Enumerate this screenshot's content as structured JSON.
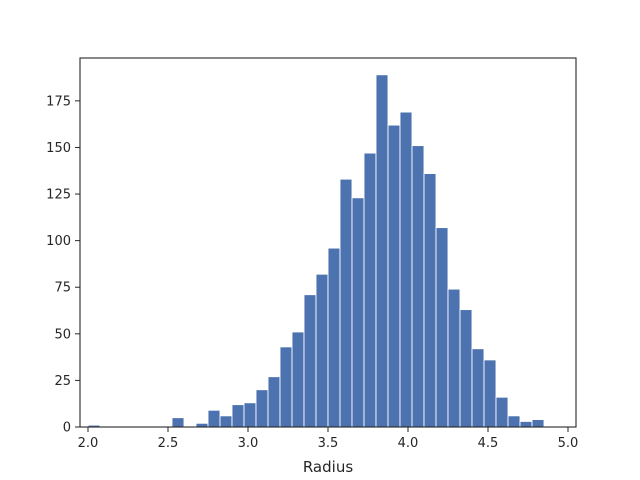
{
  "chart_data": {
    "type": "bar",
    "title": "",
    "xlabel": "Radius",
    "ylabel": "",
    "xlim": [
      1.95,
      5.05
    ],
    "ylim": [
      0,
      198
    ],
    "grid": false,
    "bar_color": "#4c72b0",
    "edge_color": "#ffffff",
    "x_ticks": [
      {
        "value": 2.0,
        "label": "2.0"
      },
      {
        "value": 2.5,
        "label": "2.5"
      },
      {
        "value": 3.0,
        "label": "3.0"
      },
      {
        "value": 3.5,
        "label": "3.5"
      },
      {
        "value": 4.0,
        "label": "4.0"
      },
      {
        "value": 4.5,
        "label": "4.5"
      },
      {
        "value": 5.0,
        "label": "5.0"
      }
    ],
    "y_ticks": [
      {
        "value": 0,
        "label": "0"
      },
      {
        "value": 25,
        "label": "25"
      },
      {
        "value": 50,
        "label": "50"
      },
      {
        "value": 75,
        "label": "75"
      },
      {
        "value": 100,
        "label": "100"
      },
      {
        "value": 125,
        "label": "125"
      },
      {
        "value": 150,
        "label": "150"
      },
      {
        "value": 175,
        "label": "175"
      }
    ],
    "bins": [
      {
        "start": 2.0,
        "end": 2.075,
        "value": 1
      },
      {
        "start": 2.075,
        "end": 2.15,
        "value": 0
      },
      {
        "start": 2.15,
        "end": 2.225,
        "value": 0
      },
      {
        "start": 2.225,
        "end": 2.3,
        "value": 0
      },
      {
        "start": 2.3,
        "end": 2.375,
        "value": 0
      },
      {
        "start": 2.375,
        "end": 2.45,
        "value": 0
      },
      {
        "start": 2.45,
        "end": 2.525,
        "value": 0
      },
      {
        "start": 2.525,
        "end": 2.6,
        "value": 5
      },
      {
        "start": 2.6,
        "end": 2.675,
        "value": 0
      },
      {
        "start": 2.675,
        "end": 2.75,
        "value": 2
      },
      {
        "start": 2.75,
        "end": 2.825,
        "value": 9
      },
      {
        "start": 2.825,
        "end": 2.9,
        "value": 6
      },
      {
        "start": 2.9,
        "end": 2.975,
        "value": 12
      },
      {
        "start": 2.975,
        "end": 3.05,
        "value": 13
      },
      {
        "start": 3.05,
        "end": 3.125,
        "value": 20
      },
      {
        "start": 3.125,
        "end": 3.2,
        "value": 27
      },
      {
        "start": 3.2,
        "end": 3.275,
        "value": 43
      },
      {
        "start": 3.275,
        "end": 3.35,
        "value": 51
      },
      {
        "start": 3.35,
        "end": 3.425,
        "value": 71
      },
      {
        "start": 3.425,
        "end": 3.5,
        "value": 82
      },
      {
        "start": 3.5,
        "end": 3.575,
        "value": 96
      },
      {
        "start": 3.575,
        "end": 3.65,
        "value": 133
      },
      {
        "start": 3.65,
        "end": 3.725,
        "value": 123
      },
      {
        "start": 3.725,
        "end": 3.8,
        "value": 147
      },
      {
        "start": 3.8,
        "end": 3.875,
        "value": 189
      },
      {
        "start": 3.875,
        "end": 3.95,
        "value": 162
      },
      {
        "start": 3.95,
        "end": 4.025,
        "value": 169
      },
      {
        "start": 4.025,
        "end": 4.1,
        "value": 151
      },
      {
        "start": 4.1,
        "end": 4.175,
        "value": 136
      },
      {
        "start": 4.175,
        "end": 4.25,
        "value": 107
      },
      {
        "start": 4.25,
        "end": 4.325,
        "value": 74
      },
      {
        "start": 4.325,
        "end": 4.4,
        "value": 63
      },
      {
        "start": 4.4,
        "end": 4.475,
        "value": 42
      },
      {
        "start": 4.475,
        "end": 4.55,
        "value": 36
      },
      {
        "start": 4.55,
        "end": 4.625,
        "value": 16
      },
      {
        "start": 4.625,
        "end": 4.7,
        "value": 6
      },
      {
        "start": 4.7,
        "end": 4.775,
        "value": 3
      },
      {
        "start": 4.775,
        "end": 4.85,
        "value": 4
      }
    ]
  }
}
